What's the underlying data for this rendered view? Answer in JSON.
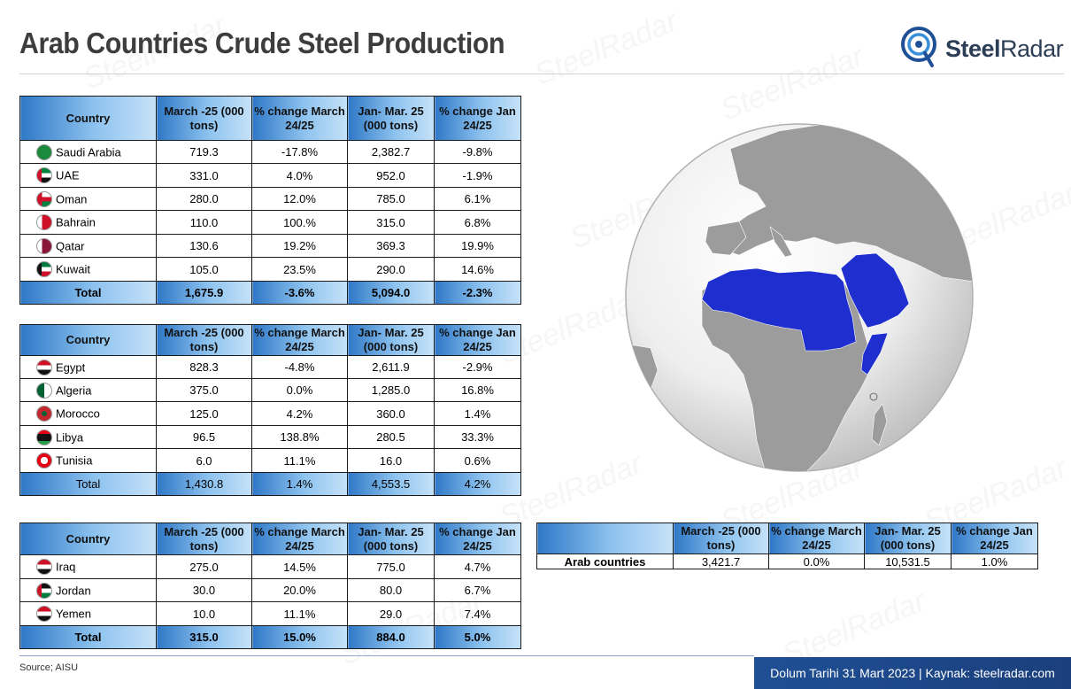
{
  "title": "Arab Countries Crude Steel Production",
  "logo": {
    "brand_bold": "Steel",
    "brand_rest": "Radar"
  },
  "headers": {
    "country": "Country",
    "march": "March -25 (000 tons)",
    "pct_march": "% change March 24/25",
    "janmar": "Jan- Mar. 25 (000 tons)",
    "pct_jan": "% change Jan 24/25"
  },
  "table1": {
    "rows": [
      {
        "country": "Saudi Arabia",
        "march": "719.3",
        "pct_march": "-17.8%",
        "janmar": "2,382.7",
        "pct_jan": "-9.8%"
      },
      {
        "country": "UAE",
        "march": "331.0",
        "pct_march": "4.0%",
        "janmar": "952.0",
        "pct_jan": "-1.9%"
      },
      {
        "country": "Oman",
        "march": "280.0",
        "pct_march": "12.0%",
        "janmar": "785.0",
        "pct_jan": "6.1%"
      },
      {
        "country": "Bahrain",
        "march": "110.0",
        "pct_march": "100.%",
        "janmar": "315.0",
        "pct_jan": "6.8%"
      },
      {
        "country": "Qatar",
        "march": "130.6",
        "pct_march": "19.2%",
        "janmar": "369.3",
        "pct_jan": "19.9%"
      },
      {
        "country": "Kuwait",
        "march": "105.0",
        "pct_march": "23.5%",
        "janmar": "290.0",
        "pct_jan": "14.6%"
      }
    ],
    "total": {
      "label": "Total",
      "march": "1,675.9",
      "pct_march": "-3.6%",
      "janmar": "5,094.0",
      "pct_jan": "-2.3%"
    }
  },
  "table2": {
    "rows": [
      {
        "country": "Egypt",
        "march": "828.3",
        "pct_march": "-4.8%",
        "janmar": "2,611.9",
        "pct_jan": "-2.9%"
      },
      {
        "country": "Algeria",
        "march": "375.0",
        "pct_march": "0.0%",
        "janmar": "1,285.0",
        "pct_jan": "16.8%"
      },
      {
        "country": "Morocco",
        "march": "125.0",
        "pct_march": "4.2%",
        "janmar": "360.0",
        "pct_jan": "1.4%"
      },
      {
        "country": "Libya",
        "march": "96.5",
        "pct_march": "138.8%",
        "janmar": "280.5",
        "pct_jan": "33.3%"
      },
      {
        "country": "Tunisia",
        "march": "6.0",
        "pct_march": "11.1%",
        "janmar": "16.0",
        "pct_jan": "0.6%"
      }
    ],
    "total": {
      "label": "Total",
      "march": "1,430.8",
      "pct_march": "1.4%",
      "janmar": "4,553.5",
      "pct_jan": "4.2%"
    }
  },
  "table3": {
    "rows": [
      {
        "country": "Iraq",
        "march": "275.0",
        "pct_march": "14.5%",
        "janmar": "775.0",
        "pct_jan": "4.7%"
      },
      {
        "country": "Jordan",
        "march": "30.0",
        "pct_march": "20.0%",
        "janmar": "80.0",
        "pct_jan": "6.7%"
      },
      {
        "country": "Yemen",
        "march": "10.0",
        "pct_march": "11.1%",
        "janmar": "29.0",
        "pct_jan": "7.4%"
      }
    ],
    "total": {
      "label": "Total",
      "march": "315.0",
      "pct_march": "15.0%",
      "janmar": "884.0",
      "pct_jan": "5.0%"
    }
  },
  "summary": {
    "label": "Arab countries",
    "march": "3,421.7",
    "pct_march": "0.0%",
    "janmar": "10,531.5",
    "pct_jan": "1.0%"
  },
  "source": "Source; AISU",
  "footer": "Dolum Tarihi 31 Mart 2023 | Kaynak: steelradar.com",
  "watermark": "SteelRadar",
  "colors": {
    "header_gradient_start": "#2f78c7",
    "header_gradient_end": "#c6e2f8",
    "arab_highlight": "#1f2fcf",
    "footer_bg": "#1f4f95"
  }
}
